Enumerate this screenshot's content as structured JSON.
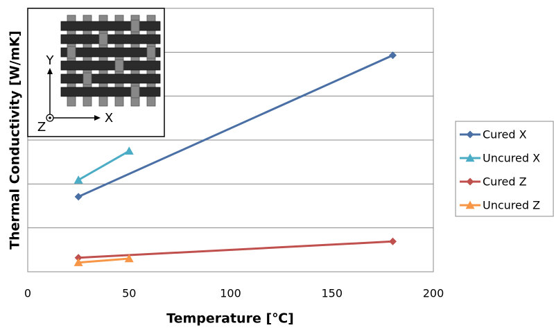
{
  "chart_data": {
    "type": "line",
    "x_label": "Temperature [℃]",
    "y_label": "Thermal Conductivity [W/mK]",
    "annotations": [
      "Y",
      "X",
      "Z"
    ],
    "xlim": [
      0,
      200
    ],
    "xticks": [
      0,
      50,
      100,
      150,
      200
    ],
    "ylim": [
      0,
      6
    ],
    "yticks": [
      0,
      1,
      2,
      3,
      4,
      5,
      6
    ],
    "grid": true,
    "legend": "right",
    "series": [
      {
        "name": "Cured X",
        "color": "#4a6fa5",
        "marker": "diamond",
        "x": [
          25,
          180
        ],
        "values": [
          1.71,
          4.93
        ]
      },
      {
        "name": "Uncured X",
        "color": "#4bacc6",
        "marker": "triangle",
        "x": [
          25,
          50
        ],
        "values": [
          2.09,
          2.75
        ]
      },
      {
        "name": "Cured Z",
        "color": "#c0504d",
        "marker": "diamond",
        "x": [
          25,
          180
        ],
        "values": [
          0.32,
          0.69
        ]
      },
      {
        "name": "Uncured Z",
        "color": "#f79646",
        "marker": "triangle",
        "x": [
          25,
          50
        ],
        "values": [
          0.21,
          0.3
        ]
      }
    ]
  }
}
